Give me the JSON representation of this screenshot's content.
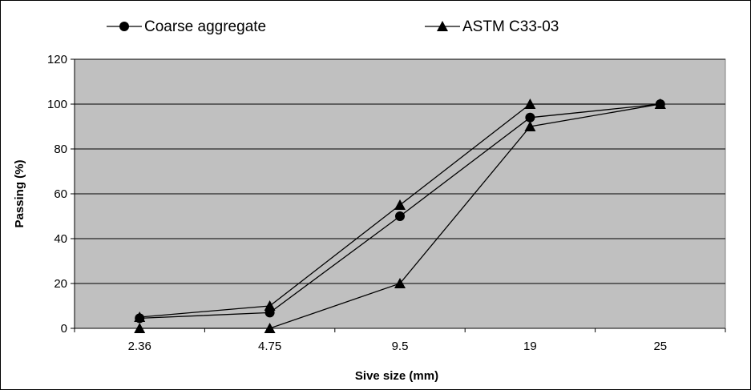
{
  "chart_data": {
    "type": "line",
    "title": "",
    "xlabel": "Sive size (mm)",
    "ylabel": "Passing (%)",
    "categories": [
      "2.36",
      "4.75",
      "9.5",
      "19",
      "25"
    ],
    "ylim": [
      0,
      120
    ],
    "yticks": [
      "0",
      "20",
      "40",
      "60",
      "80",
      "100",
      "120"
    ],
    "grid": "horizontal",
    "legend_position": "top",
    "plot_background": "#c0c0c0",
    "line_color": "#000000",
    "series": [
      {
        "name": "Coarse aggregate",
        "marker": "circle",
        "values": [
          4.5,
          7,
          50,
          94,
          100
        ]
      },
      {
        "name": "ASTM C33-03",
        "marker": "triangle",
        "values": [
          5,
          10,
          55,
          100,
          100
        ],
        "values_lower": [
          0,
          0,
          20,
          90,
          100
        ]
      }
    ]
  }
}
